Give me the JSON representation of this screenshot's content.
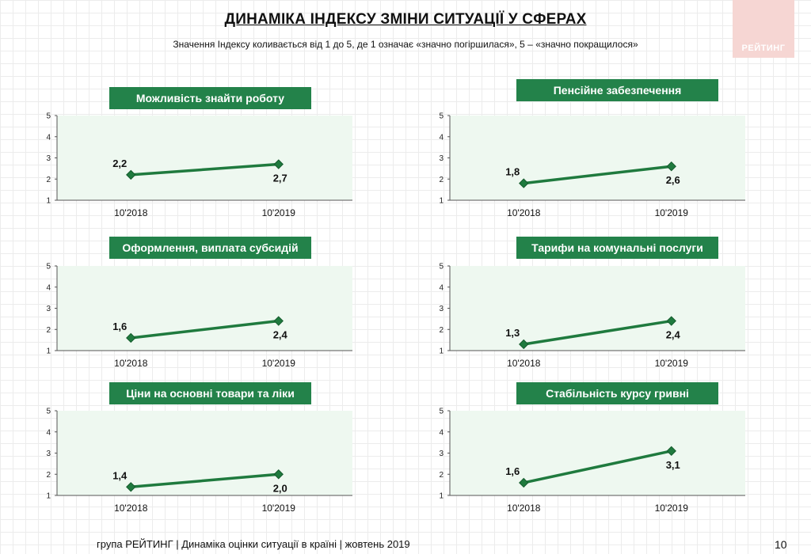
{
  "header": {
    "title": "ДИНАМІКА ІНДЕКСУ ЗМІНИ СИТУАЦІЇ У СФЕРАХ",
    "subtitle": "Значення Індексу коливається від 1 до 5, де 1 означає «значно погіршилася», 5 – «значно покращилося»",
    "logo_text": "РЕЙТИНГ"
  },
  "footer": {
    "text": "група РЕЙТИНГ | Динаміка оцінки ситуації в країні | жовтень 2019",
    "page_number": "10"
  },
  "colors": {
    "accent": "#23824a",
    "line": "#1f7a3e",
    "plot_bg": "#eef8f0"
  },
  "chart_data": [
    {
      "type": "line",
      "title": "Можливість знайти роботу",
      "categories": [
        "10'2018",
        "10'2019"
      ],
      "values": [
        2.2,
        2.7
      ],
      "labels": [
        "2,2",
        "2,7"
      ],
      "ylim": [
        1,
        5
      ],
      "yticks": [
        "1",
        "2",
        "3",
        "4",
        "5"
      ]
    },
    {
      "type": "line",
      "title": "Пенсійне забезпечення",
      "categories": [
        "10'2018",
        "10'2019"
      ],
      "values": [
        1.8,
        2.6
      ],
      "labels": [
        "1,8",
        "2,6"
      ],
      "ylim": [
        1,
        5
      ],
      "yticks": [
        "1",
        "2",
        "3",
        "4",
        "5"
      ]
    },
    {
      "type": "line",
      "title": "Оформлення, виплата субсидій",
      "categories": [
        "10'2018",
        "10'2019"
      ],
      "values": [
        1.6,
        2.4
      ],
      "labels": [
        "1,6",
        "2,4"
      ],
      "ylim": [
        1,
        5
      ],
      "yticks": [
        "1",
        "2",
        "3",
        "4",
        "5"
      ]
    },
    {
      "type": "line",
      "title": "Тарифи на комунальні послуги",
      "categories": [
        "10'2018",
        "10'2019"
      ],
      "values": [
        1.3,
        2.4
      ],
      "labels": [
        "1,3",
        "2,4"
      ],
      "ylim": [
        1,
        5
      ],
      "yticks": [
        "1",
        "2",
        "3",
        "4",
        "5"
      ]
    },
    {
      "type": "line",
      "title": "Ціни на основні товари та ліки",
      "categories": [
        "10'2018",
        "10'2019"
      ],
      "values": [
        1.4,
        2.0
      ],
      "labels": [
        "1,4",
        "2,0"
      ],
      "ylim": [
        1,
        5
      ],
      "yticks": [
        "1",
        "2",
        "3",
        "4",
        "5"
      ]
    },
    {
      "type": "line",
      "title": "Стабільність курсу гривні",
      "categories": [
        "10'2018",
        "10'2019"
      ],
      "values": [
        1.6,
        3.1
      ],
      "labels": [
        "1,6",
        "3,1"
      ],
      "ylim": [
        1,
        5
      ],
      "yticks": [
        "1",
        "2",
        "3",
        "4",
        "5"
      ]
    }
  ]
}
